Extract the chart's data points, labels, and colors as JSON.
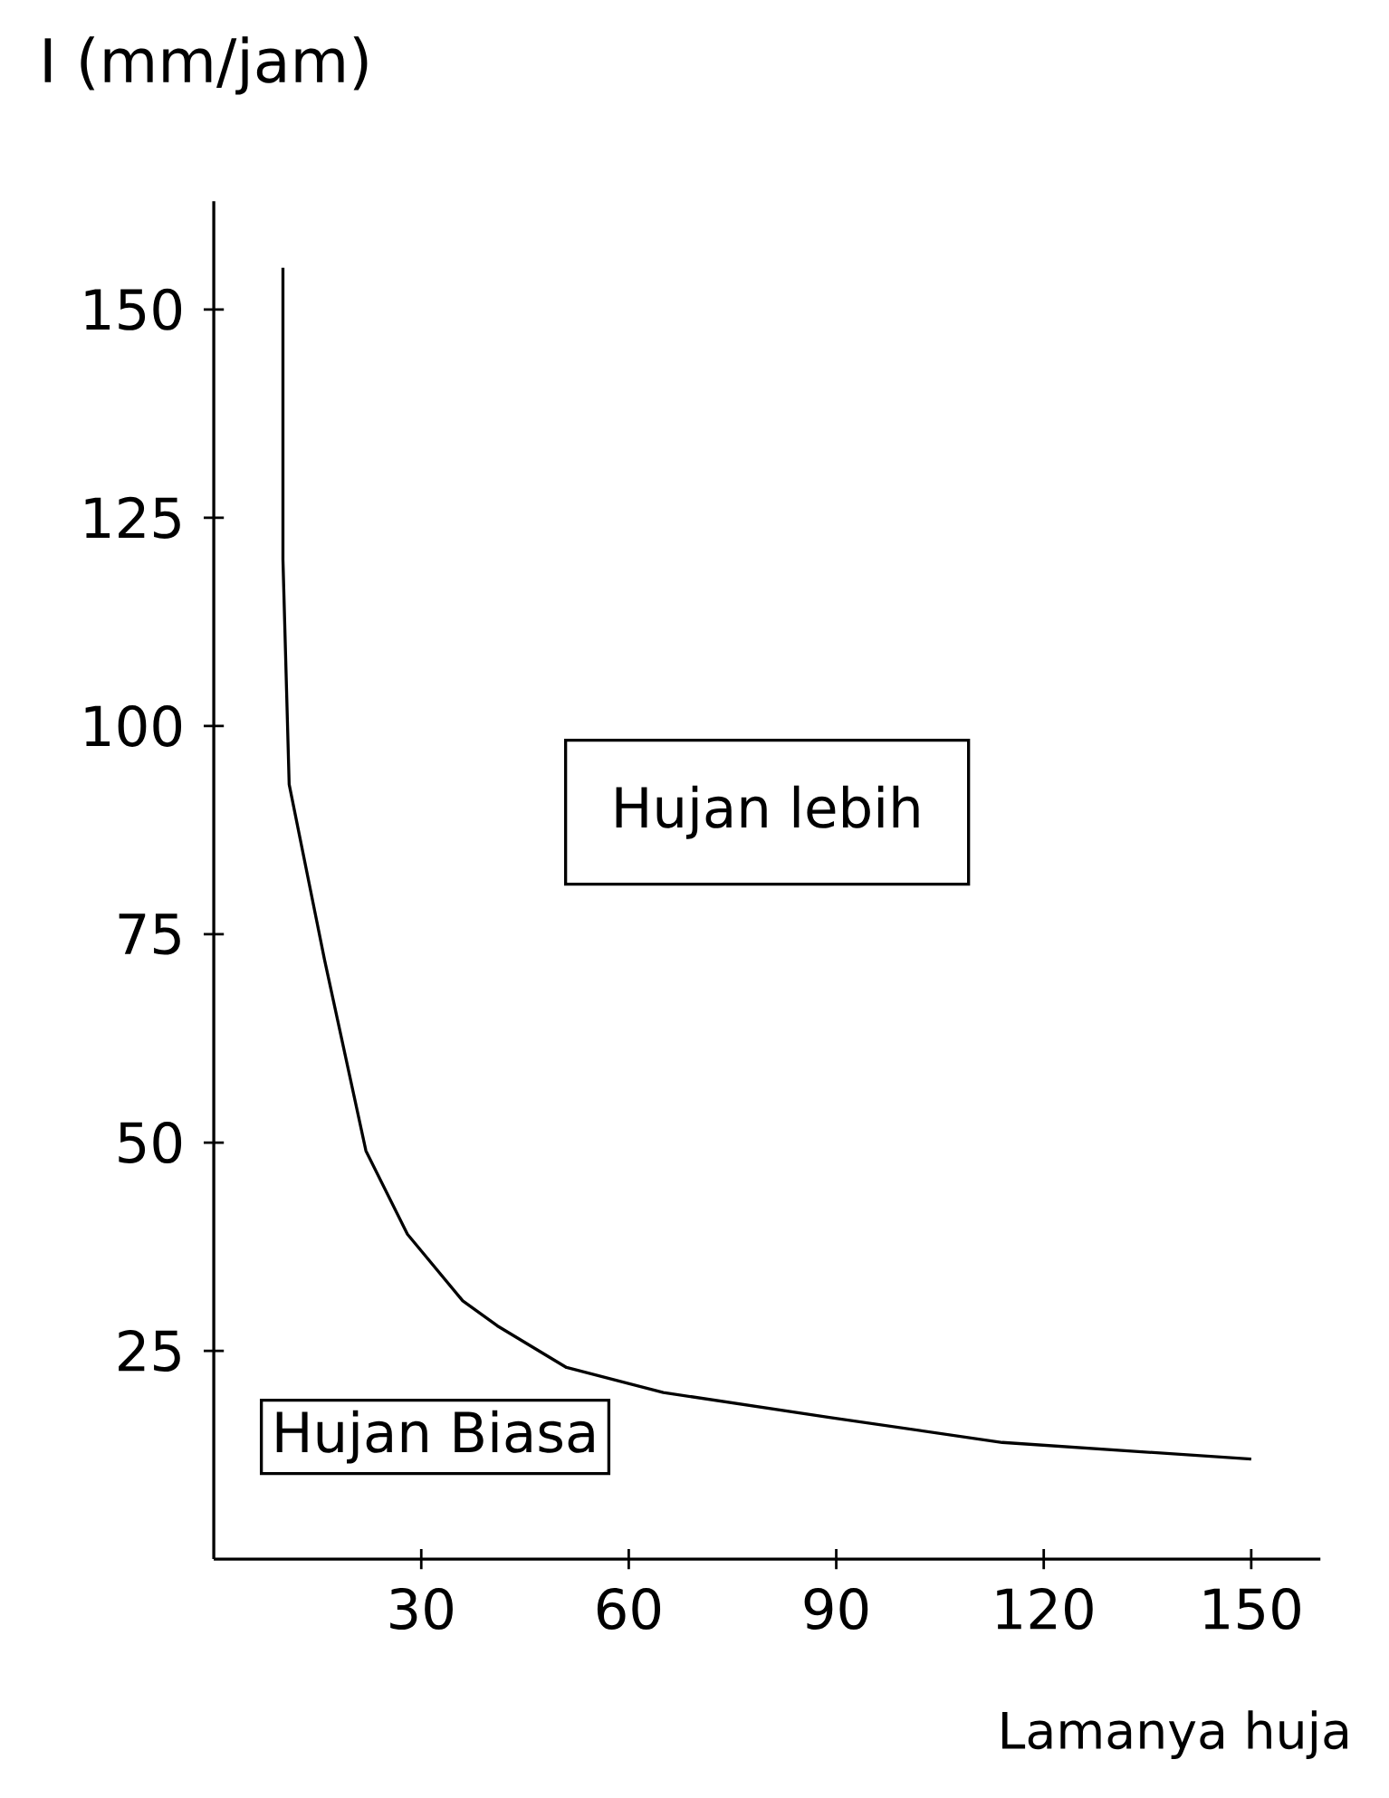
{
  "chart_data": {
    "type": "line",
    "xlabel": "Lamanya huja",
    "ylabel": "I (mm/jam)",
    "x": [
      10,
      10,
      10.9,
      16,
      22,
      28,
      36,
      41,
      51,
      65,
      89,
      114,
      150
    ],
    "values": [
      155,
      120,
      93,
      72,
      49,
      39,
      31,
      28,
      23,
      20,
      17,
      14,
      12
    ],
    "color": "#000000",
    "marker": "none",
    "line_style": "solid",
    "grid": false,
    "xlim": [
      0,
      160
    ],
    "ylim": [
      0,
      163
    ],
    "xticks": [
      30,
      60,
      90,
      120,
      150
    ],
    "yticks": [
      25,
      50,
      75,
      100,
      125,
      150
    ],
    "annotations": [
      "Hujan lebih",
      "Hujan Biasa"
    ]
  }
}
